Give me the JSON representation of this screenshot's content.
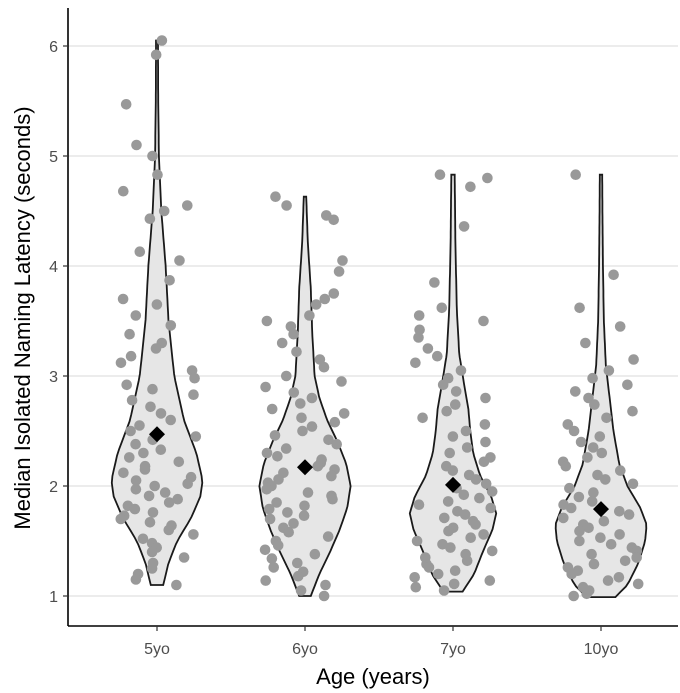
{
  "chart_data": {
    "type": "violin",
    "xlabel": "Age (years)",
    "ylabel": "Median Isolated Naming Latency (seconds)",
    "categories": [
      "5yo",
      "6yo",
      "7yo",
      "10yo"
    ],
    "ylim": [
      0.75,
      6.3
    ],
    "yticks": [
      1,
      2,
      3,
      4,
      5,
      6
    ],
    "grid": "horizontal",
    "violin_fill": "#e6e6e6",
    "violin_stroke": "#1a1a1a",
    "point_color": "#999999",
    "mean_marker": "black diamond",
    "groups": [
      {
        "name": "5yo",
        "mean": 2.47,
        "min": 1.1,
        "max": 6.05,
        "profile": [
          [
            1.1,
            0.13
          ],
          [
            1.3,
            0.24
          ],
          [
            1.5,
            0.42
          ],
          [
            1.7,
            0.7
          ],
          [
            1.9,
            0.9
          ],
          [
            2.05,
            0.95
          ],
          [
            2.3,
            0.82
          ],
          [
            2.6,
            0.56
          ],
          [
            3.0,
            0.36
          ],
          [
            3.5,
            0.24
          ],
          [
            4.0,
            0.18
          ],
          [
            4.5,
            0.09
          ],
          [
            5.0,
            0.04
          ],
          [
            5.5,
            0.025
          ],
          [
            6.05,
            0.02
          ]
        ],
        "points": [
          5.92,
          6.05,
          5.47,
          5.1,
          5.0,
          4.83,
          4.68,
          4.55,
          4.5,
          4.43,
          4.13,
          4.05,
          3.87,
          3.7,
          3.65,
          3.55,
          3.46,
          3.38,
          3.3,
          3.25,
          3.18,
          3.12,
          3.05,
          2.98,
          2.92,
          2.88,
          2.83,
          2.78,
          2.72,
          2.66,
          2.6,
          2.55,
          2.5,
          2.45,
          2.42,
          2.38,
          2.33,
          2.3,
          2.26,
          2.22,
          2.18,
          2.15,
          2.12,
          2.08,
          2.05,
          2.02,
          2.0,
          1.97,
          1.94,
          1.91,
          1.88,
          1.85,
          1.82,
          1.79,
          1.76,
          1.73,
          1.7,
          1.67,
          1.64,
          1.6,
          1.56,
          1.52,
          1.48,
          1.44,
          1.4,
          1.35,
          1.3,
          1.25,
          1.2,
          1.15,
          1.1
        ]
      },
      {
        "name": "6yo",
        "mean": 2.17,
        "min": 1.0,
        "max": 4.63,
        "profile": [
          [
            1.0,
            0.12
          ],
          [
            1.2,
            0.3
          ],
          [
            1.4,
            0.52
          ],
          [
            1.6,
            0.72
          ],
          [
            1.8,
            0.88
          ],
          [
            2.0,
            0.95
          ],
          [
            2.2,
            0.86
          ],
          [
            2.4,
            0.68
          ],
          [
            2.6,
            0.46
          ],
          [
            2.8,
            0.3
          ],
          [
            3.0,
            0.2
          ],
          [
            3.4,
            0.15
          ],
          [
            3.8,
            0.12
          ],
          [
            4.2,
            0.06
          ],
          [
            4.63,
            0.025
          ]
        ],
        "points": [
          4.63,
          4.55,
          4.46,
          4.42,
          4.05,
          3.95,
          3.75,
          3.7,
          3.65,
          3.55,
          3.5,
          3.45,
          3.38,
          3.3,
          3.22,
          3.15,
          3.08,
          3.0,
          2.95,
          2.9,
          2.85,
          2.8,
          2.75,
          2.7,
          2.66,
          2.62,
          2.58,
          2.54,
          2.5,
          2.46,
          2.42,
          2.38,
          2.34,
          2.3,
          2.27,
          2.24,
          2.21,
          2.18,
          2.15,
          2.12,
          2.09,
          2.06,
          2.03,
          2.0,
          1.97,
          1.94,
          1.91,
          1.88,
          1.85,
          1.82,
          1.79,
          1.76,
          1.73,
          1.7,
          1.66,
          1.62,
          1.58,
          1.54,
          1.5,
          1.46,
          1.42,
          1.38,
          1.34,
          1.3,
          1.26,
          1.22,
          1.18,
          1.14,
          1.1,
          1.05,
          1.0
        ]
      },
      {
        "name": "7yo",
        "mean": 2.01,
        "min": 1.04,
        "max": 4.83,
        "profile": [
          [
            1.04,
            0.2
          ],
          [
            1.2,
            0.44
          ],
          [
            1.4,
            0.62
          ],
          [
            1.6,
            0.82
          ],
          [
            1.75,
            0.9
          ],
          [
            1.9,
            0.8
          ],
          [
            2.1,
            0.56
          ],
          [
            2.3,
            0.42
          ],
          [
            2.5,
            0.36
          ],
          [
            2.7,
            0.32
          ],
          [
            2.9,
            0.24
          ],
          [
            3.2,
            0.13
          ],
          [
            3.6,
            0.08
          ],
          [
            4.2,
            0.05
          ],
          [
            4.83,
            0.035
          ]
        ],
        "points": [
          4.83,
          4.8,
          4.72,
          4.36,
          3.85,
          3.62,
          3.55,
          3.5,
          3.42,
          3.35,
          3.25,
          3.18,
          3.12,
          3.05,
          2.98,
          2.92,
          2.86,
          2.8,
          2.74,
          2.68,
          2.62,
          2.56,
          2.5,
          2.45,
          2.4,
          2.35,
          2.3,
          2.26,
          2.22,
          2.18,
          2.14,
          2.1,
          2.06,
          2.02,
          1.98,
          1.95,
          1.92,
          1.89,
          1.86,
          1.83,
          1.8,
          1.77,
          1.74,
          1.71,
          1.68,
          1.65,
          1.62,
          1.59,
          1.56,
          1.53,
          1.5,
          1.47,
          1.44,
          1.41,
          1.38,
          1.35,
          1.32,
          1.29,
          1.26,
          1.23,
          1.2,
          1.17,
          1.14,
          1.11,
          1.08,
          1.05
        ]
      },
      {
        "name": "10yo",
        "mean": 1.79,
        "min": 0.99,
        "max": 4.83,
        "profile": [
          [
            0.99,
            0.3
          ],
          [
            1.1,
            0.55
          ],
          [
            1.3,
            0.78
          ],
          [
            1.5,
            0.92
          ],
          [
            1.65,
            0.95
          ],
          [
            1.8,
            0.82
          ],
          [
            2.0,
            0.55
          ],
          [
            2.2,
            0.38
          ],
          [
            2.5,
            0.26
          ],
          [
            2.8,
            0.18
          ],
          [
            3.1,
            0.1
          ],
          [
            3.5,
            0.06
          ],
          [
            4.0,
            0.04
          ],
          [
            4.5,
            0.03
          ],
          [
            4.83,
            0.025
          ]
        ],
        "points": [
          4.83,
          3.92,
          3.62,
          3.45,
          3.3,
          3.15,
          3.05,
          2.98,
          2.92,
          2.86,
          2.8,
          2.74,
          2.68,
          2.62,
          2.56,
          2.5,
          2.45,
          2.4,
          2.35,
          2.3,
          2.26,
          2.22,
          2.18,
          2.14,
          2.1,
          2.06,
          2.02,
          1.98,
          1.94,
          1.9,
          1.86,
          1.83,
          1.8,
          1.77,
          1.74,
          1.71,
          1.68,
          1.65,
          1.62,
          1.59,
          1.56,
          1.53,
          1.5,
          1.47,
          1.44,
          1.41,
          1.38,
          1.35,
          1.32,
          1.29,
          1.26,
          1.23,
          1.2,
          1.17,
          1.14,
          1.11,
          1.08,
          1.05,
          1.02,
          1.0
        ]
      }
    ]
  }
}
